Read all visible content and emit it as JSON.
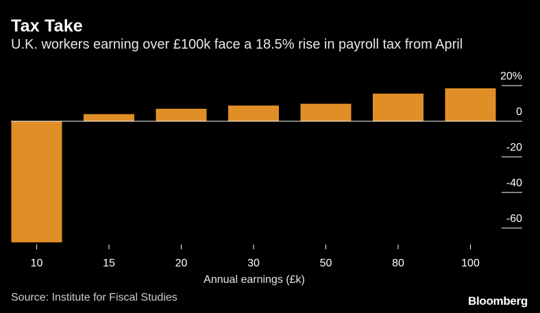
{
  "header": {
    "title": "Tax Take",
    "subtitle": "U.K. workers earning over £100k face a 18.5% rise in payroll tax from April"
  },
  "footer": {
    "source": "Source: Institute for Fiscal Studies",
    "brand": "Bloomberg"
  },
  "chart_data": {
    "type": "bar",
    "title": "Tax Take",
    "subtitle": "U.K. workers earning over £100k face a 18.5% rise in payroll tax from April",
    "xlabel": "Annual earnings (£k)",
    "ylabel": "",
    "categories": [
      "10",
      "15",
      "20",
      "30",
      "50",
      "80",
      "100"
    ],
    "values": [
      -68,
      4,
      7,
      8.8,
      9.8,
      15.5,
      18.5
    ],
    "ylim": [
      -68,
      25
    ],
    "yticks": [
      20,
      0,
      -20,
      -40,
      -60
    ],
    "ytick_labels": [
      "20%",
      "0",
      "-20",
      "-40",
      "-60"
    ],
    "axis_position": "right",
    "grid": false,
    "bar_color": "#e08f27",
    "background": "#000000"
  }
}
